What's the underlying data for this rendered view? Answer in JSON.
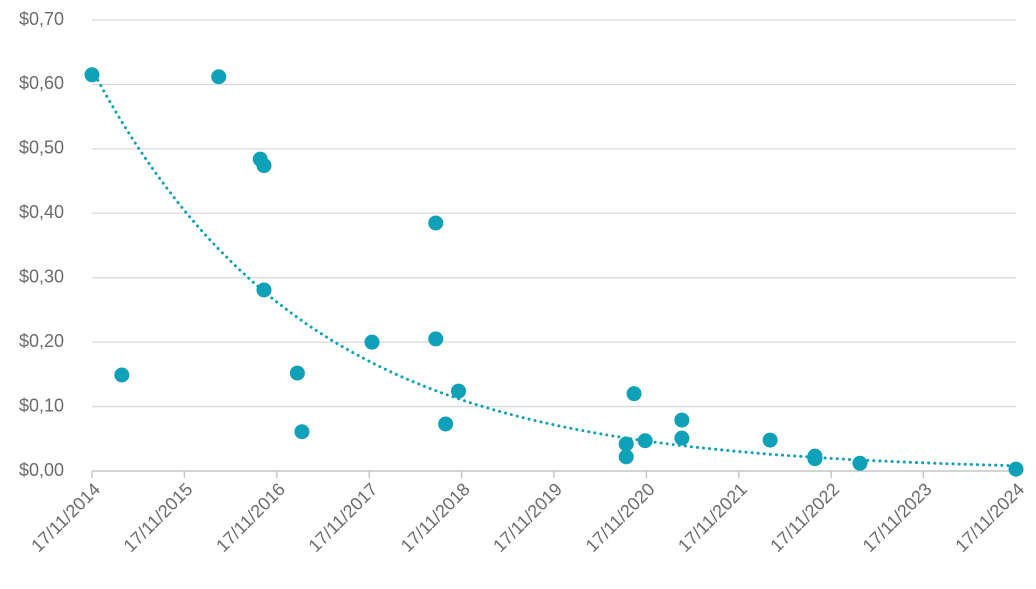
{
  "chart_data": {
    "type": "scatter",
    "color": "#0fa1b8",
    "grid": true,
    "trendline": "exponential",
    "x": [
      "2014-11-17",
      "2015-03-15",
      "2016-04-01",
      "2016-09-12",
      "2016-09-27",
      "2016-09-27",
      "2017-02-06",
      "2017-02-24",
      "2017-11-28",
      "2018-08-07",
      "2018-08-07",
      "2018-09-15",
      "2018-11-05",
      "2020-08-29",
      "2020-08-29",
      "2020-09-29",
      "2020-11-12",
      "2021-04-06",
      "2021-04-06",
      "2022-03-21",
      "2022-09-14",
      "2022-09-14",
      "2023-03-11",
      "2024-11-17"
    ],
    "values": [
      0.615,
      0.149,
      0.612,
      0.484,
      0.474,
      0.281,
      0.152,
      0.061,
      0.2,
      0.385,
      0.205,
      0.073,
      0.124,
      0.042,
      0.022,
      0.12,
      0.047,
      0.079,
      0.051,
      0.048,
      0.023,
      0.019,
      0.012,
      0.003
    ],
    "xlim": [
      "2014-11-17",
      "2024-11-17"
    ],
    "xticks": [
      {
        "value": "2014-11-17",
        "label": "17/11/2014"
      },
      {
        "value": "2015-11-17",
        "label": "17/11/2015"
      },
      {
        "value": "2016-11-17",
        "label": "17/11/2016"
      },
      {
        "value": "2017-11-17",
        "label": "17/11/2017"
      },
      {
        "value": "2018-11-17",
        "label": "17/11/2018"
      },
      {
        "value": "2019-11-17",
        "label": "17/11/2019"
      },
      {
        "value": "2020-11-17",
        "label": "17/11/2020"
      },
      {
        "value": "2021-11-17",
        "label": "17/11/2021"
      },
      {
        "value": "2022-11-17",
        "label": "17/11/2022"
      },
      {
        "value": "2023-11-17",
        "label": "17/11/2023"
      },
      {
        "value": "2024-11-17",
        "label": "17/11/2024"
      }
    ],
    "ylim": [
      0,
      0.7
    ],
    "yticks": [
      {
        "value": 0,
        "label": "$0,00"
      },
      {
        "value": 0.1,
        "label": "$0,10"
      },
      {
        "value": 0.2,
        "label": "$0,20"
      },
      {
        "value": 0.3,
        "label": "$0,30"
      },
      {
        "value": 0.4,
        "label": "$0,40"
      },
      {
        "value": 0.5,
        "label": "$0,50"
      },
      {
        "value": 0.6,
        "label": "$0,60"
      },
      {
        "value": 0.7,
        "label": "$0,70"
      }
    ]
  }
}
